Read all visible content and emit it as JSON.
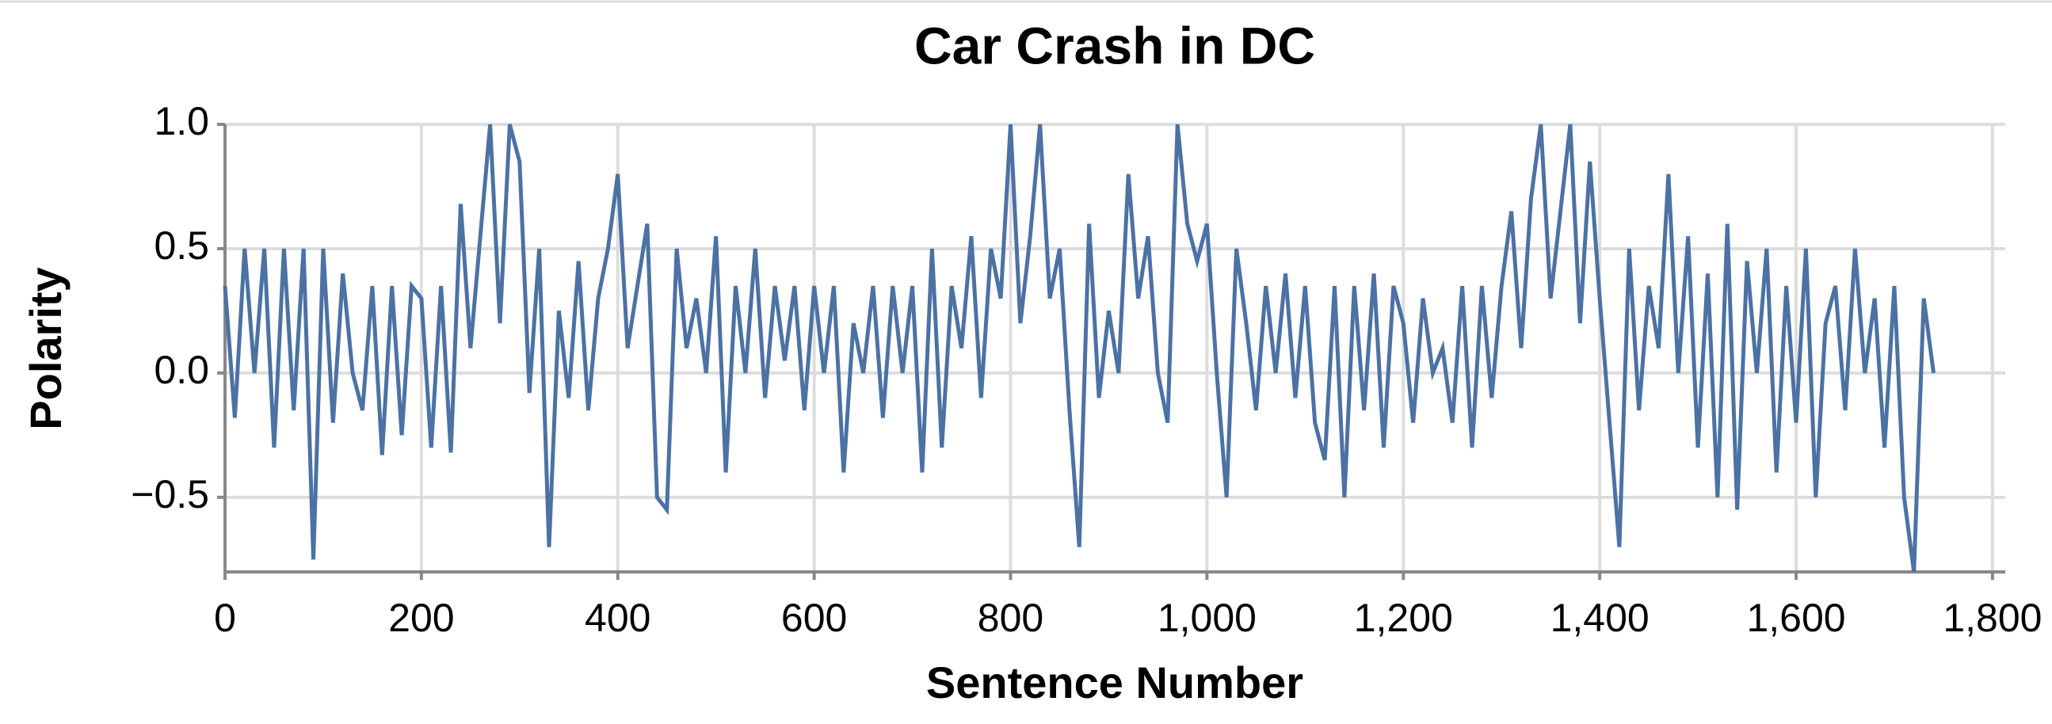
{
  "chart_data": {
    "type": "line",
    "title": "Car Crash in DC",
    "x_label": "Sentence Number",
    "y_label": "Polarity",
    "xlim": [
      0,
      1813
    ],
    "ylim": [
      -0.8,
      1.0
    ],
    "xticks": [
      0,
      200,
      400,
      600,
      800,
      {
        "value": 1000,
        "label": "1,000"
      },
      {
        "value": 1200,
        "label": "1,200"
      },
      {
        "value": 1400,
        "label": "1,400"
      },
      {
        "value": 1600,
        "label": "1,600"
      },
      {
        "value": 1800,
        "label": "1,800"
      }
    ],
    "yticks": [
      {
        "value": -0.5,
        "label": "−0.5"
      },
      {
        "value": 0,
        "label": "0.0"
      },
      0.5,
      {
        "value": 1,
        "label": "1.0"
      }
    ],
    "grid": true,
    "color": "#4c72a4",
    "x": [
      0,
      10,
      20,
      30,
      40,
      50,
      60,
      70,
      80,
      90,
      100,
      110,
      120,
      130,
      140,
      150,
      160,
      170,
      180,
      190,
      200,
      210,
      220,
      230,
      240,
      250,
      260,
      270,
      280,
      290,
      300,
      310,
      320,
      330,
      340,
      350,
      360,
      370,
      380,
      390,
      400,
      410,
      420,
      430,
      440,
      450,
      460,
      470,
      480,
      490,
      500,
      510,
      520,
      530,
      540,
      550,
      560,
      570,
      580,
      590,
      600,
      610,
      620,
      630,
      640,
      650,
      660,
      670,
      680,
      690,
      700,
      710,
      720,
      730,
      740,
      750,
      760,
      770,
      780,
      790,
      800,
      810,
      820,
      830,
      840,
      850,
      860,
      870,
      880,
      890,
      900,
      910,
      920,
      930,
      940,
      950,
      960,
      970,
      980,
      990,
      1000,
      1010,
      1020,
      1030,
      1040,
      1050,
      1060,
      1070,
      1080,
      1090,
      1100,
      1110,
      1120,
      1130,
      1140,
      1150,
      1160,
      1170,
      1180,
      1190,
      1200,
      1210,
      1220,
      1230,
      1240,
      1250,
      1260,
      1270,
      1280,
      1290,
      1300,
      1310,
      1320,
      1330,
      1340,
      1350,
      1360,
      1370,
      1380,
      1390,
      1400,
      1410,
      1420,
      1430,
      1440,
      1450,
      1460,
      1470,
      1480,
      1490,
      1500,
      1510,
      1520,
      1530,
      1540,
      1550,
      1560,
      1570,
      1580,
      1590,
      1600,
      1610,
      1620,
      1630,
      1640,
      1650,
      1660,
      1670,
      1680,
      1690,
      1700,
      1710,
      1720,
      1730,
      1740
    ],
    "values": [
      0.35,
      -0.18,
      0.5,
      0.0,
      0.5,
      -0.3,
      0.5,
      -0.15,
      0.5,
      -0.75,
      0.5,
      -0.2,
      0.4,
      0.0,
      -0.15,
      0.35,
      -0.33,
      0.35,
      -0.25,
      0.35,
      0.3,
      -0.3,
      0.35,
      -0.32,
      0.68,
      0.1,
      0.55,
      1.0,
      0.2,
      1.0,
      0.85,
      -0.08,
      0.5,
      -0.7,
      0.25,
      -0.1,
      0.45,
      -0.15,
      0.3,
      0.5,
      0.8,
      0.1,
      0.35,
      0.6,
      -0.5,
      -0.55,
      0.5,
      0.1,
      0.3,
      0.0,
      0.55,
      -0.4,
      0.35,
      0.0,
      0.5,
      -0.1,
      0.35,
      0.05,
      0.35,
      -0.15,
      0.35,
      0.0,
      0.35,
      -0.4,
      0.2,
      0.0,
      0.35,
      -0.18,
      0.35,
      0.0,
      0.35,
      -0.4,
      0.5,
      -0.3,
      0.35,
      0.1,
      0.55,
      -0.1,
      0.5,
      0.3,
      1.0,
      0.2,
      0.55,
      1.0,
      0.3,
      0.5,
      -0.15,
      -0.7,
      0.6,
      -0.1,
      0.25,
      0.0,
      0.8,
      0.3,
      0.55,
      0.0,
      -0.2,
      1.0,
      0.6,
      0.45,
      0.6,
      0.0,
      -0.5,
      0.5,
      0.2,
      -0.15,
      0.35,
      0.0,
      0.4,
      -0.1,
      0.35,
      -0.2,
      -0.35,
      0.35,
      -0.5,
      0.35,
      -0.15,
      0.4,
      -0.3,
      0.35,
      0.2,
      -0.2,
      0.3,
      0.0,
      0.1,
      -0.2,
      0.35,
      -0.3,
      0.35,
      -0.1,
      0.35,
      0.65,
      0.1,
      0.7,
      1.0,
      0.3,
      0.65,
      1.0,
      0.2,
      0.85,
      0.3,
      -0.2,
      -0.7,
      0.5,
      -0.15,
      0.35,
      0.1,
      0.8,
      0.0,
      0.55,
      -0.3,
      0.4,
      -0.5,
      0.6,
      -0.55,
      0.45,
      0.0,
      0.5,
      -0.4,
      0.35,
      -0.2,
      0.5,
      -0.5,
      0.2,
      0.35,
      -0.15,
      0.5,
      0.0,
      0.3,
      -0.3,
      0.35,
      -0.5,
      -0.8,
      0.3,
      0.0
    ]
  }
}
